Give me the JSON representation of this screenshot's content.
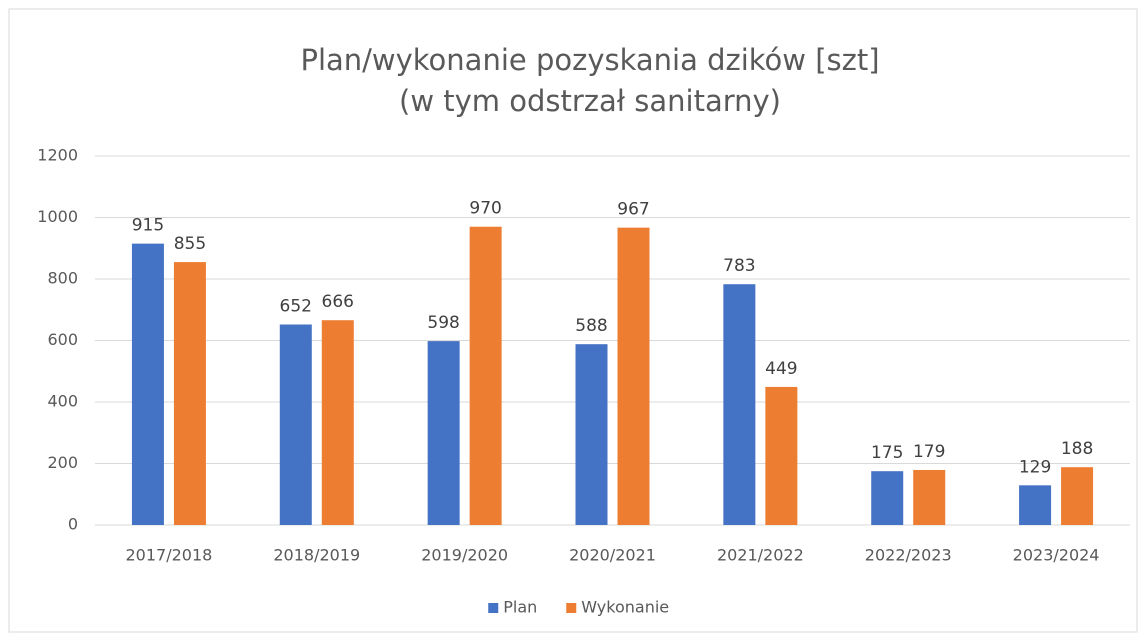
{
  "chart_data": {
    "type": "bar",
    "title": "Plan/wykonanie pozyskania dzików [szt]",
    "subtitle": "(w tym odstrzał sanitarny)",
    "categories": [
      "2017/2018",
      "2018/2019",
      "2019/2020",
      "2020/2021",
      "2021/2022",
      "2022/2023",
      "2023/2024"
    ],
    "series": [
      {
        "name": "Plan",
        "color": "#4472c4",
        "values": [
          915,
          652,
          598,
          588,
          783,
          175,
          129
        ]
      },
      {
        "name": "Wykonanie",
        "color": "#ed7d31",
        "values": [
          855,
          666,
          970,
          967,
          449,
          179,
          188
        ]
      }
    ],
    "ylim": [
      0,
      1200
    ],
    "yticks": [
      0,
      200,
      400,
      600,
      800,
      1000,
      1200
    ],
    "grid": true,
    "legend": "bottom"
  }
}
